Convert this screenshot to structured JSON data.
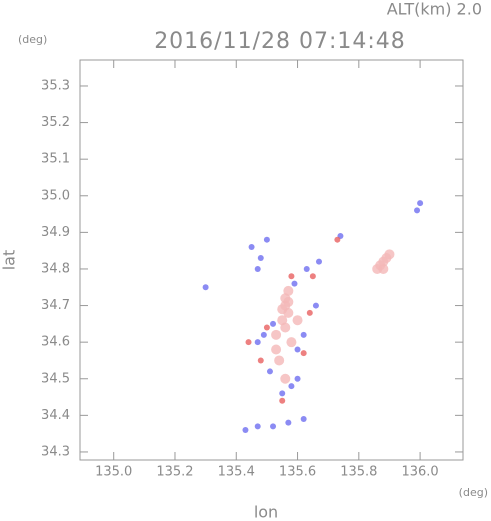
{
  "chart_data": {
    "type": "scatter",
    "title": "2016/11/28 07:14:48",
    "subtitle": "ALT(km) 2.0",
    "y_unit": "(deg)",
    "x_unit": "(deg)",
    "xlabel": "lon",
    "ylabel": "lat",
    "xlim": [
      134.89,
      136.14
    ],
    "ylim": [
      34.278,
      35.371
    ],
    "xticks": [
      {
        "value": 135,
        "label": "135.0"
      },
      135.2,
      135.4,
      135.6,
      135.8,
      {
        "value": 136,
        "label": "136.0"
      }
    ],
    "yticks": [
      34.3,
      34.4,
      34.5,
      34.6,
      34.7,
      34.8,
      34.9,
      {
        "value": 35,
        "label": "35.0"
      },
      35.1,
      35.2,
      35.3
    ],
    "grid": false,
    "series": [
      {
        "color": "#f4b8b8",
        "x": [
          135.88,
          135.87,
          135.89,
          135.86,
          135.9,
          135.88,
          135.56,
          135.56,
          135.57,
          135.55,
          135.56,
          135.57,
          135.55,
          135.57,
          135.53,
          135.58,
          135.54,
          135.56,
          135.53,
          135.6
        ],
        "y": [
          34.82,
          34.81,
          34.83,
          34.8,
          34.84,
          34.8,
          34.72,
          34.7,
          34.68,
          34.66,
          34.64,
          34.74,
          34.69,
          34.71,
          34.62,
          34.6,
          34.55,
          34.5,
          34.58,
          34.66
        ]
      },
      {
        "color": "#6e6ef0",
        "x": [
          135.45,
          135.48,
          135.5,
          135.47,
          135.59,
          135.63,
          135.67,
          135.52,
          135.49,
          135.47,
          135.6,
          135.62,
          135.51,
          135.58,
          135.6,
          135.55,
          135.43,
          135.47,
          135.52,
          135.57,
          135.62,
          135.74,
          135.99,
          136,
          135.3,
          135.66
        ],
        "y": [
          34.86,
          34.83,
          34.88,
          34.8,
          34.76,
          34.8,
          34.82,
          34.65,
          34.62,
          34.6,
          34.58,
          34.62,
          34.52,
          34.48,
          34.5,
          34.46,
          34.36,
          34.37,
          34.37,
          34.38,
          34.39,
          34.89,
          34.96,
          34.98,
          34.75,
          34.7
        ]
      },
      {
        "color": "#e86060",
        "x": [
          135.5,
          135.44,
          135.58,
          135.65,
          135.55,
          135.48,
          135.62,
          135.73,
          135.64
        ],
        "y": [
          34.64,
          34.6,
          34.78,
          34.78,
          34.44,
          34.55,
          34.57,
          34.88,
          34.68
        ]
      }
    ]
  }
}
